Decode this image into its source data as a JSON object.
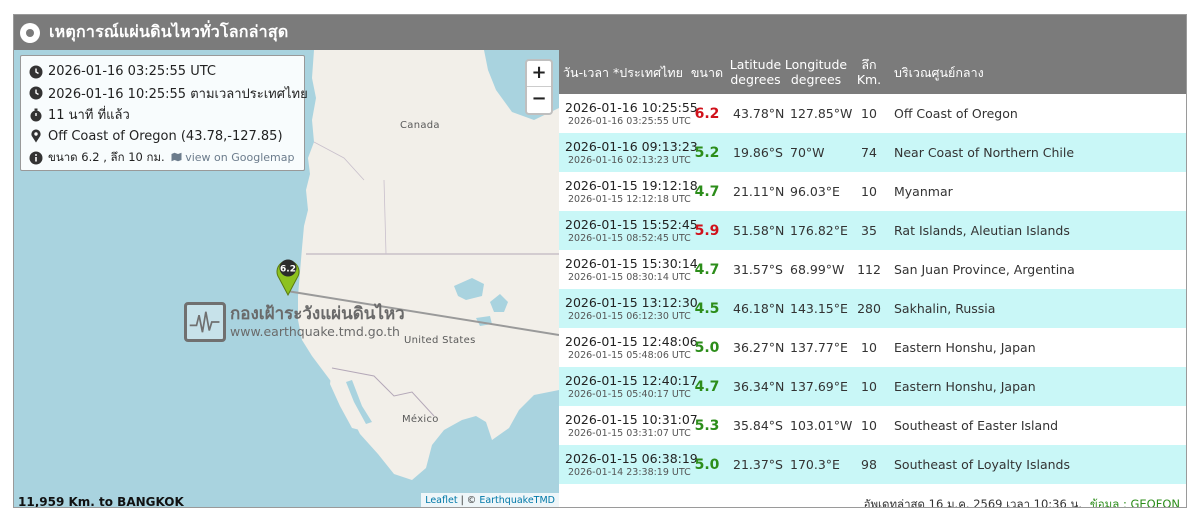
{
  "header": {
    "title": "เหตุการณ์แผ่นดินไหวทั่วโลกล่าสุด"
  },
  "info": {
    "utc_time": "2026-01-16 03:25:55 UTC",
    "thai_time": "2026-01-16 10:25:55 ตามเวลาประเทศไทย",
    "elapsed": "11 นาที ที่แล้ว",
    "location": "Off Coast of Oregon (43.78,-127.85)",
    "magnitude_depth": "ขนาด 6.2 , ลึก 10 กม.",
    "googlemap_link": "view on Googlemap"
  },
  "map": {
    "zoom_in": "+",
    "zoom_out": "−",
    "labels": {
      "canada": "Canada",
      "usa": "United States",
      "mexico": "México"
    },
    "marker_label": "6.2",
    "watermark_title": "กองเฝ้าระวังแผ่นดินไหว",
    "watermark_url": "www.earthquake.tmd.go.th",
    "distance": "11,959 Km. to BANGKOK",
    "attribution_leaflet": "Leaflet",
    "attribution_sep": " | © ",
    "attribution_source": "EarthquakeTMD",
    "colors": {
      "water": "#a9d3df",
      "land": "#f2efe9",
      "marker": "#8dc21f"
    }
  },
  "table": {
    "headers": {
      "datetime": "วัน-เวลา *ประเทศไทย",
      "magnitude": "ขนาด",
      "latitude": "Latitude degrees",
      "longitude": "Longitude degrees",
      "depth": "ลึก Km.",
      "area": "บริเวณศูนย์กลาง"
    },
    "rows": [
      {
        "local": "2026-01-16 10:25:55",
        "utc": "2026-01-16 03:25:55 UTC",
        "mag": "6.2",
        "lat": "43.78°N",
        "lon": "127.85°W",
        "depth": "10",
        "area": "Off Coast of Oregon"
      },
      {
        "local": "2026-01-16 09:13:23",
        "utc": "2026-01-16 02:13:23 UTC",
        "mag": "5.2",
        "lat": "19.86°S",
        "lon": "70°W",
        "depth": "74",
        "area": "Near Coast of Northern Chile"
      },
      {
        "local": "2026-01-15 19:12:18",
        "utc": "2026-01-15 12:12:18 UTC",
        "mag": "4.7",
        "lat": "21.11°N",
        "lon": "96.03°E",
        "depth": "10",
        "area": "Myanmar"
      },
      {
        "local": "2026-01-15 15:52:45",
        "utc": "2026-01-15 08:52:45 UTC",
        "mag": "5.9",
        "lat": "51.58°N",
        "lon": "176.82°E",
        "depth": "35",
        "area": "Rat Islands, Aleutian Islands"
      },
      {
        "local": "2026-01-15 15:30:14",
        "utc": "2026-01-15 08:30:14 UTC",
        "mag": "4.7",
        "lat": "31.57°S",
        "lon": "68.99°W",
        "depth": "112",
        "area": "San Juan Province, Argentina"
      },
      {
        "local": "2026-01-15 13:12:30",
        "utc": "2026-01-15 06:12:30 UTC",
        "mag": "4.5",
        "lat": "46.18°N",
        "lon": "143.15°E",
        "depth": "280",
        "area": "Sakhalin, Russia"
      },
      {
        "local": "2026-01-15 12:48:06",
        "utc": "2026-01-15 05:48:06 UTC",
        "mag": "5.0",
        "lat": "36.27°N",
        "lon": "137.77°E",
        "depth": "10",
        "area": "Eastern Honshu, Japan"
      },
      {
        "local": "2026-01-15 12:40:17",
        "utc": "2026-01-15 05:40:17 UTC",
        "mag": "4.7",
        "lat": "36.34°N",
        "lon": "137.69°E",
        "depth": "10",
        "area": "Eastern Honshu, Japan"
      },
      {
        "local": "2026-01-15 10:31:07",
        "utc": "2026-01-15 03:31:07 UTC",
        "mag": "5.3",
        "lat": "35.84°S",
        "lon": "103.01°W",
        "depth": "10",
        "area": "Southeast of Easter Island"
      },
      {
        "local": "2026-01-15 06:38:19",
        "utc": "2026-01-14 23:38:19 UTC",
        "mag": "5.0",
        "lat": "21.37°S",
        "lon": "170.3°E",
        "depth": "98",
        "area": "Southeast of Loyalty Islands"
      }
    ],
    "mag_colors": {
      "high": "#d0111b",
      "normal": "#2c8d1a"
    }
  },
  "footer": {
    "updated": "อัพเดทล่าสุด 16 ม.ค. 2569 เวลา 10:36 น.",
    "source": "ข้อมูล : GEOFON"
  }
}
